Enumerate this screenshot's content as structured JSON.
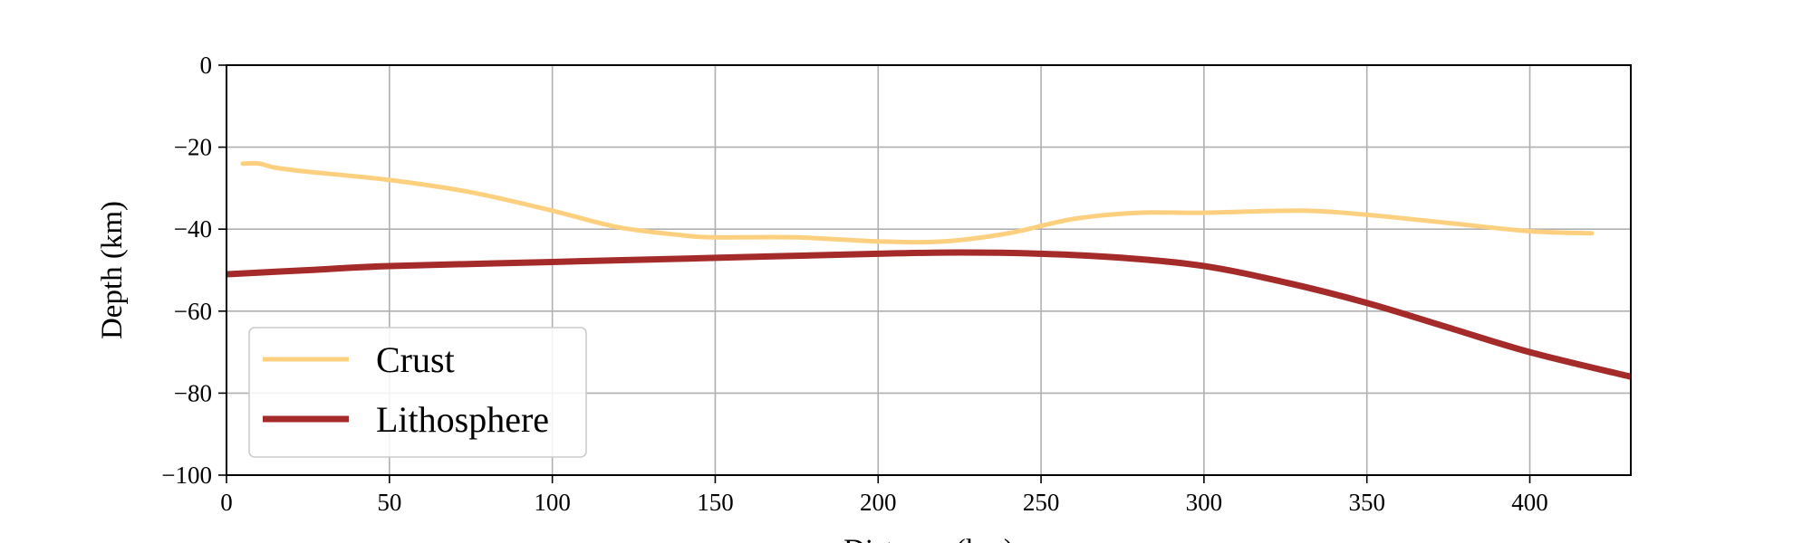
{
  "chart_data": {
    "type": "line",
    "title": "",
    "xlabel": "Distance (km)",
    "ylabel": "Depth (km)",
    "xlim": [
      0,
      431
    ],
    "ylim": [
      -100,
      0
    ],
    "x_ticks": [
      0,
      50,
      100,
      150,
      200,
      250,
      300,
      350,
      400
    ],
    "x_tick_labels": [
      "0",
      "50",
      "100",
      "150",
      "200",
      "250",
      "300",
      "350",
      "400"
    ],
    "y_ticks": [
      0,
      -20,
      -40,
      -60,
      -80,
      -100
    ],
    "y_tick_labels": [
      "0",
      "−20",
      "−40",
      "−60",
      "−80",
      "−100"
    ],
    "grid": true,
    "legend_position": "lower-left",
    "series": [
      {
        "name": "Crust",
        "color": "#FDD080",
        "x": [
          5,
          10,
          15,
          25,
          50,
          75,
          100,
          120,
          140,
          150,
          175,
          200,
          220,
          240,
          260,
          280,
          300,
          330,
          350,
          375,
          400,
          419
        ],
        "y": [
          -24,
          -24,
          -25,
          -26,
          -28,
          -31,
          -35.5,
          -39.5,
          -41.5,
          -42,
          -42,
          -43,
          -43,
          -41,
          -37.5,
          -36,
          -36,
          -35.5,
          -36.5,
          -38.5,
          -40.5,
          -41
        ]
      },
      {
        "name": "Lithosphere",
        "color": "#A52A2A",
        "x": [
          0,
          25,
          50,
          100,
          150,
          200,
          225,
          250,
          275,
          300,
          325,
          350,
          375,
          400,
          431
        ],
        "y": [
          -51,
          -50,
          -49,
          -48,
          -47,
          -46,
          -45.7,
          -46,
          -47,
          -49,
          -53,
          -58,
          -64,
          -70,
          -76
        ]
      }
    ]
  }
}
